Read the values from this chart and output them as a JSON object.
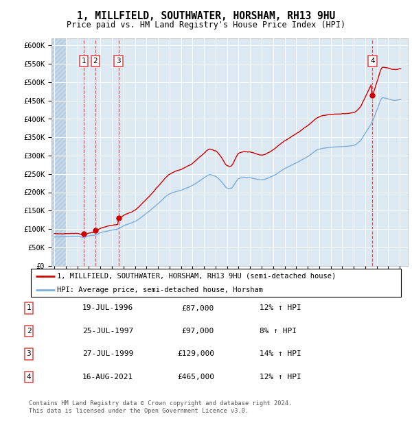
{
  "title": "1, MILLFIELD, SOUTHWATER, HORSHAM, RH13 9HU",
  "subtitle": "Price paid vs. HM Land Registry's House Price Index (HPI)",
  "ylim": [
    0,
    620000
  ],
  "yticks": [
    0,
    50000,
    100000,
    150000,
    200000,
    250000,
    300000,
    350000,
    400000,
    450000,
    500000,
    550000,
    600000
  ],
  "ytick_labels": [
    "£0",
    "£50K",
    "£100K",
    "£150K",
    "£200K",
    "£250K",
    "£300K",
    "£350K",
    "£400K",
    "£450K",
    "£500K",
    "£550K",
    "£600K"
  ],
  "sale_prices": [
    87000,
    97000,
    129000,
    465000
  ],
  "sale_years": [
    1996.554,
    1997.569,
    1999.572,
    2021.623
  ],
  "sale_labels": [
    "1",
    "2",
    "3",
    "4"
  ],
  "property_line_color": "#cc0000",
  "hpi_line_color": "#7aaddb",
  "dashed_line_color": "#dd4444",
  "sale_marker_color": "#cc0000",
  "background_plot": "#dce8f2",
  "background_hatch": "#c5d8e8",
  "grid_color": "#ffffff",
  "legend_property": "1, MILLFIELD, SOUTHWATER, HORSHAM, RH13 9HU (semi-detached house)",
  "legend_hpi": "HPI: Average price, semi-detached house, Horsham",
  "table_rows": [
    {
      "num": "1",
      "date": "19-JUL-1996",
      "price": "£87,000",
      "hpi": "12% ↑ HPI"
    },
    {
      "num": "2",
      "date": "25-JUL-1997",
      "price": "£97,000",
      "hpi": "8% ↑ HPI"
    },
    {
      "num": "3",
      "date": "27-JUL-1999",
      "price": "£129,000",
      "hpi": "14% ↑ HPI"
    },
    {
      "num": "4",
      "date": "16-AUG-2021",
      "price": "£465,000",
      "hpi": "12% ↑ HPI"
    }
  ],
  "footnote1": "Contains HM Land Registry data © Crown copyright and database right 2024.",
  "footnote2": "This data is licensed under the Open Government Licence v3.0.",
  "xmin": 1994.0,
  "xmax": 2024.7,
  "hatch_end": 1995.0
}
